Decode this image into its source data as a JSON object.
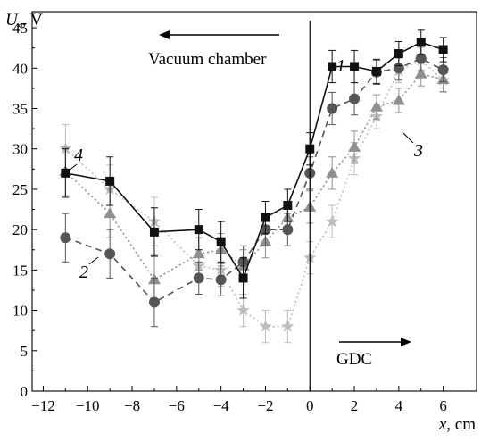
{
  "chart_data": {
    "type": "line",
    "ylabel_symbol": "U",
    "ylabel_subscript": "s",
    "ylabel_unit": ", V",
    "xlabel_var": "x",
    "xlabel_unit": ", cm",
    "xlim": [
      -12.5,
      7.5
    ],
    "ylim": [
      0,
      47
    ],
    "xticks": [
      -12,
      -10,
      -8,
      -6,
      -4,
      -2,
      0,
      2,
      4,
      6
    ],
    "xtick_labels": [
      "−12",
      "−10",
      "−8",
      "−6",
      "−4",
      "−2",
      "0",
      "2",
      "4",
      "6"
    ],
    "yticks": [
      0,
      5,
      10,
      15,
      20,
      25,
      30,
      35,
      40,
      45
    ],
    "ytick_labels": [
      "0",
      "5",
      "10",
      "15",
      "20",
      "25",
      "30",
      "35",
      "40",
      "45"
    ],
    "grid": false,
    "annotations": {
      "left_text": "Vacuum chamber",
      "right_text": "GDC",
      "divider_x": 0
    },
    "series": [
      {
        "label": "1",
        "color": "#111111",
        "marker": "square",
        "dash": "",
        "x": [
          -11,
          -9,
          -7,
          -5,
          -4,
          -3,
          -2,
          -1,
          0,
          1,
          2,
          3,
          4,
          5,
          6
        ],
        "y": [
          27,
          26,
          19.7,
          20,
          18.5,
          14,
          21.5,
          23,
          30,
          40.2,
          40.2,
          39.6,
          41.8,
          43.2,
          42.3
        ],
        "err": [
          3,
          3,
          3,
          2.5,
          2.5,
          2.5,
          2,
          2,
          2,
          2,
          2,
          1.5,
          1.5,
          1.5,
          1.5
        ]
      },
      {
        "label": "2",
        "color": "#555555",
        "marker": "circle",
        "dash": "7,5",
        "x": [
          -11,
          -9,
          -7,
          -5,
          -4,
          -3,
          -2,
          -1,
          0,
          1,
          2,
          3,
          4,
          5,
          6
        ],
        "y": [
          19,
          17,
          11,
          14,
          13.8,
          16,
          20,
          20,
          27,
          35,
          36.2,
          39.5,
          40,
          41.2,
          39.8
        ],
        "err": [
          3,
          3,
          3,
          2,
          2,
          2,
          2,
          2,
          2,
          2,
          2,
          1.5,
          1.5,
          1.5,
          1.5
        ]
      },
      {
        "label": "3",
        "color": "#8f8f8f",
        "marker": "triangle",
        "dash": "2,3",
        "x": [
          -11,
          -9,
          -7,
          -5,
          -4,
          -3,
          -2,
          -1,
          0,
          1,
          2,
          3,
          4,
          5,
          6
        ],
        "y": [
          27.2,
          22,
          13.8,
          17,
          17.5,
          15.5,
          18.5,
          21.5,
          22.8,
          27,
          30.2,
          35.2,
          36,
          39.3,
          38.6
        ],
        "err": [
          3,
          3,
          3,
          2,
          2,
          2,
          2,
          2,
          2,
          2,
          2,
          1.5,
          1.5,
          1.5,
          1.5
        ]
      },
      {
        "label": "4",
        "color": "#bdbdbd",
        "marker": "star",
        "dash": "2,3",
        "x": [
          -11,
          -9,
          -7,
          -5,
          -4,
          -3,
          -2,
          -1,
          0,
          1,
          2,
          3,
          4,
          5,
          6
        ],
        "y": [
          30,
          25,
          21,
          15.5,
          15,
          10,
          8,
          8,
          16.5,
          21,
          28.8,
          34,
          39.7,
          41,
          38.5
        ],
        "err": [
          3,
          3,
          3,
          2,
          2,
          2,
          2,
          2,
          2,
          2,
          2,
          1.5,
          1.5,
          1.5,
          1.5
        ]
      }
    ]
  }
}
